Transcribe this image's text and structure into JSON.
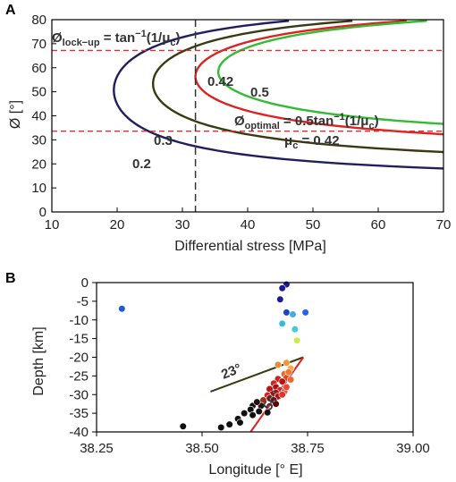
{
  "panels": {
    "a": "A",
    "b": "B"
  },
  "annotations": {
    "lockup": {
      "main": "Ø",
      "sub": "lock−up",
      "rest": " = tan",
      "sup": "−1",
      "tail1": "(1/μ",
      "sub2": "c",
      "tail2": ")"
    },
    "optimal": {
      "main": "Ø",
      "sub": "optimal",
      "rest": " = 0.5tan",
      "sup": "−1",
      "tail1": "(1/μ",
      "sub2": "c",
      "tail2": ")"
    },
    "mu": {
      "main": "μ",
      "sub": "c",
      "rest": " = 0.42"
    },
    "angle1": "23°",
    "angle2": "56°"
  },
  "chart_data": [
    {
      "type": "line",
      "panel": "A",
      "xlabel": "Differential stress [MPa]",
      "ylabel": "Ø [°]",
      "xlim": [
        10,
        70
      ],
      "ylim": [
        0,
        80
      ],
      "xticks": [
        10,
        20,
        30,
        40,
        50,
        60,
        70
      ],
      "yticks": [
        0,
        10,
        20,
        30,
        40,
        50,
        60,
        70,
        80
      ],
      "sigma_ref": 32,
      "series": [
        {
          "name": "0.2",
          "mu": 0.2,
          "color": "#1f1f5f"
        },
        {
          "name": "0.3",
          "mu": 0.3,
          "color": "#3a3a10"
        },
        {
          "name": "0.42",
          "mu": 0.42,
          "color": "#dd2222"
        },
        {
          "name": "0.5",
          "mu": 0.5,
          "color": "#33bb33"
        }
      ],
      "hlines": [
        {
          "y": 67.2,
          "color": "#e03030"
        },
        {
          "y": 33.6,
          "color": "#e03030"
        }
      ],
      "vline": {
        "x": 32,
        "color": "#333333"
      }
    },
    {
      "type": "scatter",
      "panel": "B",
      "xlabel": "Longitude [° E]",
      "ylabel": "Depth [km]",
      "xlim": [
        38.25,
        39.0
      ],
      "ylim": [
        -40,
        0
      ],
      "xticks": [
        "38.25",
        "38.50",
        "38.75",
        "39.00"
      ],
      "yticks": [
        "0",
        "-5",
        "-10",
        "-15",
        "-20",
        "-25",
        "-30",
        "-35",
        "-40"
      ],
      "points": [
        {
          "x": 38.31,
          "y": -7.0,
          "color": "#2255dd"
        },
        {
          "x": 38.7,
          "y": -0.5,
          "color": "#1a1aa0"
        },
        {
          "x": 38.69,
          "y": -1.5,
          "color": "#1a1aa0"
        },
        {
          "x": 38.685,
          "y": -4.5,
          "color": "#1a1aa0"
        },
        {
          "x": 38.7,
          "y": -8.0,
          "color": "#1a44cc"
        },
        {
          "x": 38.745,
          "y": -8.0,
          "color": "#2266ee"
        },
        {
          "x": 38.715,
          "y": -8.5,
          "color": "#44aaee"
        },
        {
          "x": 38.69,
          "y": -11.0,
          "color": "#33bbdd"
        },
        {
          "x": 38.72,
          "y": -12.5,
          "color": "#44ccdd"
        },
        {
          "x": 38.725,
          "y": -15.5,
          "color": "#ccee44"
        },
        {
          "x": 38.68,
          "y": -22.0,
          "color": "#ee8833"
        },
        {
          "x": 38.7,
          "y": -21.5,
          "color": "#ee9933"
        },
        {
          "x": 38.71,
          "y": -23.0,
          "color": "#ffaa44"
        },
        {
          "x": 38.695,
          "y": -24.5,
          "color": "#ee6622"
        },
        {
          "x": 38.7,
          "y": -25.5,
          "color": "#dd4422"
        },
        {
          "x": 38.68,
          "y": -25.8,
          "color": "#cc2222"
        },
        {
          "x": 38.69,
          "y": -26.5,
          "color": "#bb1111"
        },
        {
          "x": 38.67,
          "y": -27.0,
          "color": "#cc2222"
        },
        {
          "x": 38.675,
          "y": -28.0,
          "color": "#aa1111"
        },
        {
          "x": 38.66,
          "y": -28.5,
          "color": "#bb1111"
        },
        {
          "x": 38.685,
          "y": -28.8,
          "color": "#cc2222"
        },
        {
          "x": 38.695,
          "y": -29.2,
          "color": "#ee5533"
        },
        {
          "x": 38.675,
          "y": -29.5,
          "color": "#aa1111"
        },
        {
          "x": 38.665,
          "y": -30.0,
          "color": "#bb1111"
        },
        {
          "x": 38.68,
          "y": -30.5,
          "color": "#aa1111"
        },
        {
          "x": 38.655,
          "y": -30.2,
          "color": "#cc2222"
        },
        {
          "x": 38.66,
          "y": -31.0,
          "color": "#aa1111"
        },
        {
          "x": 38.67,
          "y": -31.5,
          "color": "#880000"
        },
        {
          "x": 38.69,
          "y": -30.0,
          "color": "#dd3333"
        },
        {
          "x": 38.7,
          "y": -28.0,
          "color": "#ee4433"
        },
        {
          "x": 38.71,
          "y": -26.0,
          "color": "#ee6633"
        },
        {
          "x": 38.705,
          "y": -24.0,
          "color": "#ee7733"
        },
        {
          "x": 38.675,
          "y": -32.5,
          "color": "#660000"
        },
        {
          "x": 38.645,
          "y": -31.5,
          "color": "#993311"
        },
        {
          "x": 38.64,
          "y": -33.0,
          "color": "#221111"
        },
        {
          "x": 38.62,
          "y": -33.0,
          "color": "#111111"
        },
        {
          "x": 38.615,
          "y": -34.0,
          "color": "#111111"
        },
        {
          "x": 38.635,
          "y": -34.5,
          "color": "#111111"
        },
        {
          "x": 38.6,
          "y": -35.0,
          "color": "#111111"
        },
        {
          "x": 38.62,
          "y": -35.5,
          "color": "#111111"
        },
        {
          "x": 38.585,
          "y": -36.5,
          "color": "#111111"
        },
        {
          "x": 38.59,
          "y": -37.5,
          "color": "#111111"
        },
        {
          "x": 38.565,
          "y": -38.0,
          "color": "#111111"
        },
        {
          "x": 38.545,
          "y": -38.8,
          "color": "#111111"
        },
        {
          "x": 38.455,
          "y": -38.5,
          "color": "#111111"
        },
        {
          "x": 38.655,
          "y": -34.8,
          "color": "#111111"
        },
        {
          "x": 38.63,
          "y": -32.0,
          "color": "#221111"
        }
      ],
      "lines": [
        {
          "x1": 38.52,
          "y1": -29.2,
          "x2": 38.74,
          "y2": -20.0,
          "color": "#3a3a10"
        },
        {
          "x1": 38.615,
          "y1": -40.0,
          "x2": 38.74,
          "y2": -20.0,
          "color": "#dd2222"
        }
      ]
    }
  ]
}
